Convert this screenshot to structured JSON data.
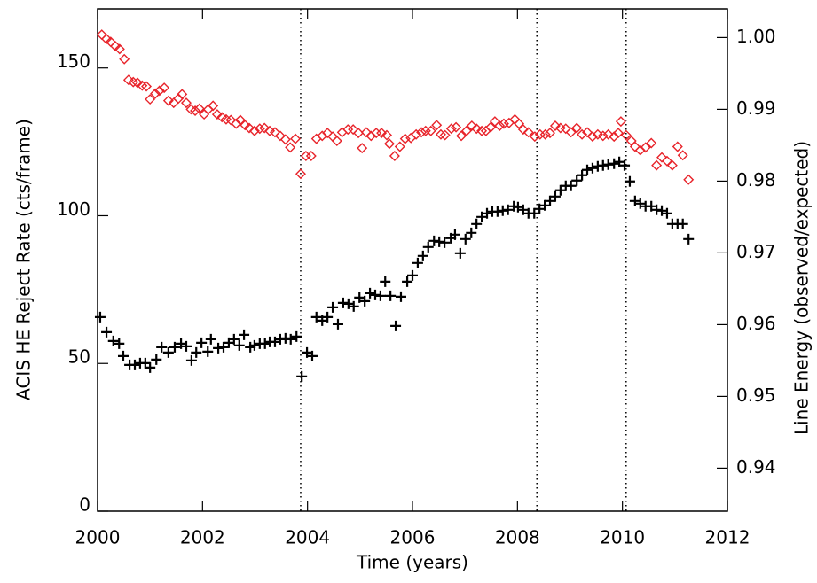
{
  "chart_data": {
    "type": "scatter",
    "xlabel": "Time (years)",
    "ylabel": "ACIS HE Reject Rate (cts/frame)",
    "y2label": "Line Energy (observed/expected)",
    "xlim": [
      2000,
      2012
    ],
    "xticks": [
      2000,
      2002,
      2004,
      2006,
      2008,
      2010,
      2012
    ],
    "ylim": [
      0,
      170
    ],
    "yticks": [
      0,
      50,
      100,
      150
    ],
    "y2lim": [
      0.934,
      1.004
    ],
    "y2ticks": [
      0.94,
      0.95,
      0.96,
      0.97,
      0.98,
      0.99,
      {
        "value": 1,
        "label": "1.00"
      }
    ],
    "vlines": [
      2003.87,
      2008.37,
      2010.07
    ],
    "series": [
      {
        "color": "#000000",
        "marker": "plus",
        "x": [
          2000.05,
          2000.17,
          2000.3,
          2000.41,
          2000.49,
          2000.61,
          2000.71,
          2000.81,
          2000.91,
          2001.0,
          2001.12,
          2001.22,
          2001.35,
          2001.47,
          2001.59,
          2001.69,
          2001.79,
          2001.88,
          2001.98,
          2002.1,
          2002.16,
          2002.3,
          2002.4,
          2002.5,
          2002.6,
          2002.7,
          2002.79,
          2002.91,
          2002.99,
          2003.09,
          2003.19,
          2003.28,
          2003.38,
          2003.48,
          2003.58,
          2003.68,
          2003.79,
          2003.89,
          2003.99,
          2004.09,
          2004.17,
          2004.28,
          2004.38,
          2004.48,
          2004.58,
          2004.68,
          2004.78,
          2004.88,
          2004.99,
          2005.09,
          2005.19,
          2005.29,
          2005.39,
          2005.48,
          2005.58,
          2005.68,
          2005.78,
          2005.9,
          2006.0,
          2006.1,
          2006.2,
          2006.3,
          2006.41,
          2006.51,
          2006.61,
          2006.73,
          2006.81,
          2006.91,
          2007.01,
          2007.12,
          2007.22,
          2007.32,
          2007.42,
          2007.52,
          2007.62,
          2007.72,
          2007.82,
          2007.93,
          2008.01,
          2008.11,
          2008.21,
          2008.32,
          2008.42,
          2008.52,
          2008.62,
          2008.72,
          2008.82,
          2008.92,
          2009.02,
          2009.13,
          2009.23,
          2009.33,
          2009.43,
          2009.53,
          2009.63,
          2009.73,
          2009.84,
          2009.94,
          2010.04,
          2010.14,
          2010.24,
          2010.34,
          2010.44,
          2010.55,
          2010.65,
          2010.75,
          2010.85,
          2010.95,
          2011.05,
          2011.15,
          2011.26
        ],
        "values": [
          65.7,
          60.6,
          57.6,
          56.7,
          52.5,
          49.5,
          49.5,
          50.1,
          50.1,
          48.6,
          51.3,
          55.5,
          53.7,
          55.5,
          56.7,
          55.8,
          51.0,
          53.7,
          57.0,
          54.0,
          58.2,
          55.2,
          55.5,
          57.0,
          58.2,
          56.1,
          59.7,
          55.5,
          56.1,
          56.7,
          56.7,
          57.3,
          57.3,
          58.2,
          58.5,
          58.2,
          59.1,
          45.6,
          53.7,
          52.5,
          65.7,
          64.5,
          65.7,
          69.0,
          63.3,
          70.5,
          70.2,
          69.3,
          72.3,
          71.1,
          73.8,
          73.2,
          72.9,
          77.7,
          72.9,
          62.7,
          72.6,
          77.7,
          79.8,
          84.0,
          86.4,
          89.4,
          91.5,
          91.2,
          90.9,
          92.4,
          93.6,
          87.3,
          92.1,
          94.2,
          97.2,
          99.6,
          100.8,
          101.4,
          101.4,
          101.7,
          102.0,
          103.2,
          102.9,
          102.0,
          100.8,
          100.8,
          102.3,
          103.5,
          105.0,
          106.5,
          108.6,
          110.1,
          110.1,
          111.9,
          113.7,
          115.5,
          116.1,
          116.7,
          117.0,
          117.3,
          117.6,
          118.2,
          117.0,
          111.6,
          105.0,
          104.1,
          103.2,
          103.2,
          102.0,
          101.7,
          100.8,
          97.2,
          97.2,
          97.2,
          92.1
        ]
      },
      {
        "color": "#e8232a",
        "marker": "diamond",
        "axis": "y2",
        "x": [
          2000.08,
          2000.17,
          2000.25,
          2000.34,
          2000.42,
          2000.51,
          2000.59,
          2000.68,
          2000.76,
          2000.85,
          2000.93,
          2001.0,
          2001.1,
          2001.18,
          2001.27,
          2001.35,
          2001.45,
          2001.54,
          2001.61,
          2001.69,
          2001.78,
          2001.86,
          2001.94,
          2002.03,
          2002.11,
          2002.2,
          2002.28,
          2002.37,
          2002.45,
          2002.54,
          2002.64,
          2002.72,
          2002.81,
          2002.89,
          2002.99,
          2003.09,
          2003.18,
          2003.28,
          2003.38,
          2003.48,
          2003.58,
          2003.67,
          2003.77,
          2003.87,
          2003.97,
          2004.07,
          2004.17,
          2004.28,
          2004.38,
          2004.48,
          2004.56,
          2004.66,
          2004.77,
          2004.87,
          2004.97,
          2005.04,
          2005.12,
          2005.21,
          2005.31,
          2005.41,
          2005.51,
          2005.56,
          2005.66,
          2005.76,
          2005.86,
          2005.97,
          2006.07,
          2006.17,
          2006.25,
          2006.35,
          2006.46,
          2006.54,
          2006.62,
          2006.74,
          2006.83,
          2006.93,
          2007.03,
          2007.13,
          2007.22,
          2007.32,
          2007.4,
          2007.49,
          2007.57,
          2007.66,
          2007.74,
          2007.84,
          2007.95,
          2008.03,
          2008.11,
          2008.21,
          2008.33,
          2008.43,
          2008.53,
          2008.62,
          2008.72,
          2008.82,
          2008.92,
          2009.02,
          2009.13,
          2009.23,
          2009.33,
          2009.43,
          2009.53,
          2009.63,
          2009.73,
          2009.84,
          2009.92,
          2009.97,
          2010.07,
          2010.17,
          2010.24,
          2010.34,
          2010.44,
          2010.55,
          2010.65,
          2010.75,
          2010.85,
          2010.95,
          2011.05,
          2011.15,
          2011.26
        ],
        "values": [
          1.0004,
          0.9998,
          0.9994,
          0.9988,
          0.9984,
          0.997,
          0.9941,
          0.9938,
          0.9937,
          0.9933,
          0.9932,
          0.9914,
          0.9922,
          0.9926,
          0.993,
          0.9912,
          0.9909,
          0.9915,
          0.9921,
          0.9909,
          0.99,
          0.9898,
          0.9901,
          0.9893,
          0.99,
          0.9905,
          0.9893,
          0.9889,
          0.9886,
          0.9885,
          0.988,
          0.9885,
          0.9878,
          0.9874,
          0.987,
          0.9873,
          0.9874,
          0.987,
          0.9868,
          0.9863,
          0.9858,
          0.9847,
          0.9859,
          0.981,
          0.9835,
          0.9835,
          0.9859,
          0.9863,
          0.9867,
          0.9862,
          0.9856,
          0.9868,
          0.9872,
          0.9872,
          0.9867,
          0.9846,
          0.9868,
          0.9863,
          0.9867,
          0.9867,
          0.9864,
          0.9852,
          0.9835,
          0.9848,
          0.9859,
          0.986,
          0.9865,
          0.9868,
          0.987,
          0.987,
          0.9878,
          0.9865,
          0.9864,
          0.9873,
          0.9875,
          0.9863,
          0.987,
          0.9877,
          0.9873,
          0.987,
          0.987,
          0.9875,
          0.9883,
          0.9877,
          0.988,
          0.9881,
          0.9886,
          0.988,
          0.9872,
          0.9868,
          0.9862,
          0.9865,
          0.9865,
          0.9867,
          0.9877,
          0.9874,
          0.9873,
          0.9868,
          0.9874,
          0.9865,
          0.9868,
          0.9862,
          0.9865,
          0.9863,
          0.9865,
          0.9862,
          0.9867,
          0.9883,
          0.9864,
          0.9856,
          0.9848,
          0.9843,
          0.9847,
          0.9853,
          0.9822,
          0.9833,
          0.9828,
          0.9822,
          0.9848,
          0.9836,
          0.9802
        ]
      }
    ]
  }
}
